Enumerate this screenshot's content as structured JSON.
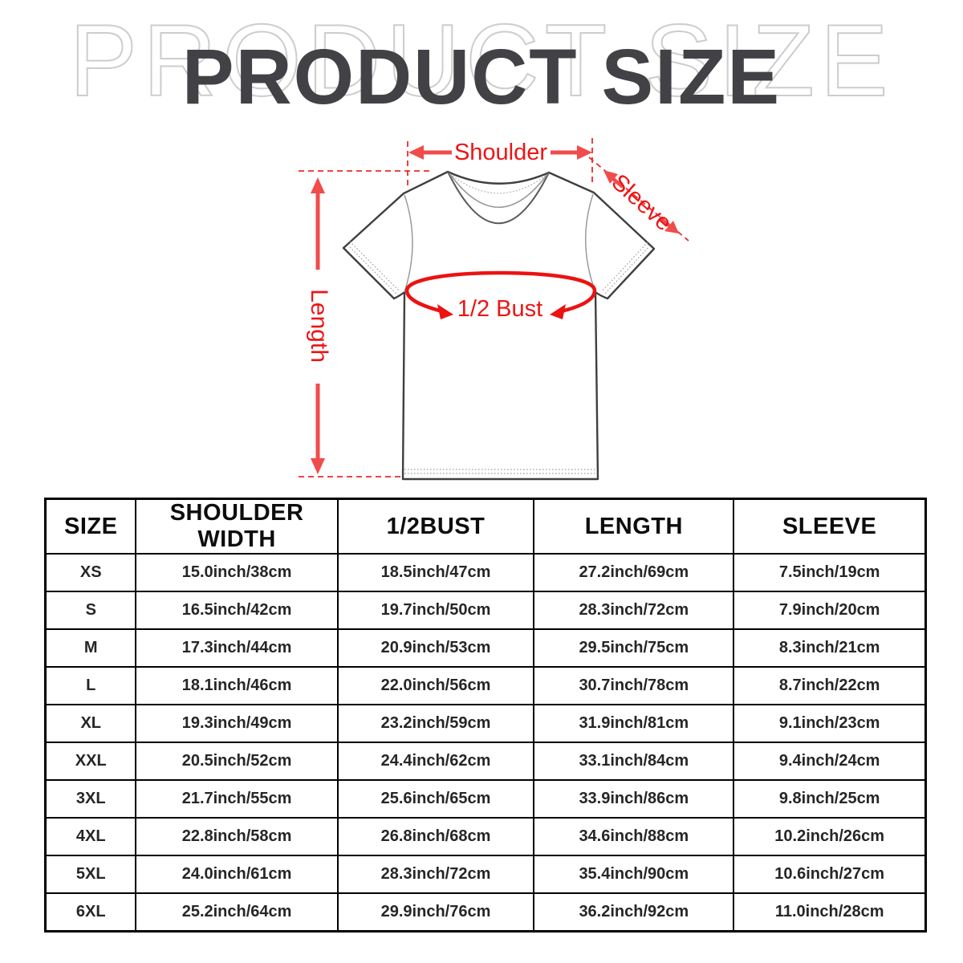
{
  "title": {
    "main": "PRODUCT SIZE",
    "watermark": "PRODUCT SIZE"
  },
  "diagram": {
    "labels": {
      "shoulder": "Shoulder",
      "sleeve": "Sleeve",
      "length": "Length",
      "bust": "1/2 Bust"
    },
    "colors": {
      "annotation_red": "#ee1414",
      "arrow_red": "#f14b4b",
      "bust_red": "#ec1212",
      "dash_red": "#ee2a2a",
      "shirt_outline_gray": "#3f3f3f",
      "shirt_detail_gray": "#9a9a9a"
    }
  },
  "table": {
    "headers": [
      "SIZE",
      "SHOULDER WIDTH",
      "1/2BUST",
      "LENGTH",
      "SLEEVE"
    ],
    "rows": [
      [
        "XS",
        "15.0inch/38cm",
        "18.5inch/47cm",
        "27.2inch/69cm",
        "7.5inch/19cm"
      ],
      [
        "S",
        "16.5inch/42cm",
        "19.7inch/50cm",
        "28.3inch/72cm",
        "7.9inch/20cm"
      ],
      [
        "M",
        "17.3inch/44cm",
        "20.9inch/53cm",
        "29.5inch/75cm",
        "8.3inch/21cm"
      ],
      [
        "L",
        "18.1inch/46cm",
        "22.0inch/56cm",
        "30.7inch/78cm",
        "8.7inch/22cm"
      ],
      [
        "XL",
        "19.3inch/49cm",
        "23.2inch/59cm",
        "31.9inch/81cm",
        "9.1inch/23cm"
      ],
      [
        "XXL",
        "20.5inch/52cm",
        "24.4inch/62cm",
        "33.1inch/84cm",
        "9.4inch/24cm"
      ],
      [
        "3XL",
        "21.7inch/55cm",
        "25.6inch/65cm",
        "33.9inch/86cm",
        "9.8inch/25cm"
      ],
      [
        "4XL",
        "22.8inch/58cm",
        "26.8inch/68cm",
        "34.6inch/88cm",
        "10.2inch/26cm"
      ],
      [
        "5XL",
        "24.0inch/61cm",
        "28.3inch/72cm",
        "35.4inch/90cm",
        "10.6inch/27cm"
      ],
      [
        "6XL",
        "25.2inch/64cm",
        "29.9inch/76cm",
        "36.2inch/92cm",
        "11.0inch/28cm"
      ]
    ]
  }
}
